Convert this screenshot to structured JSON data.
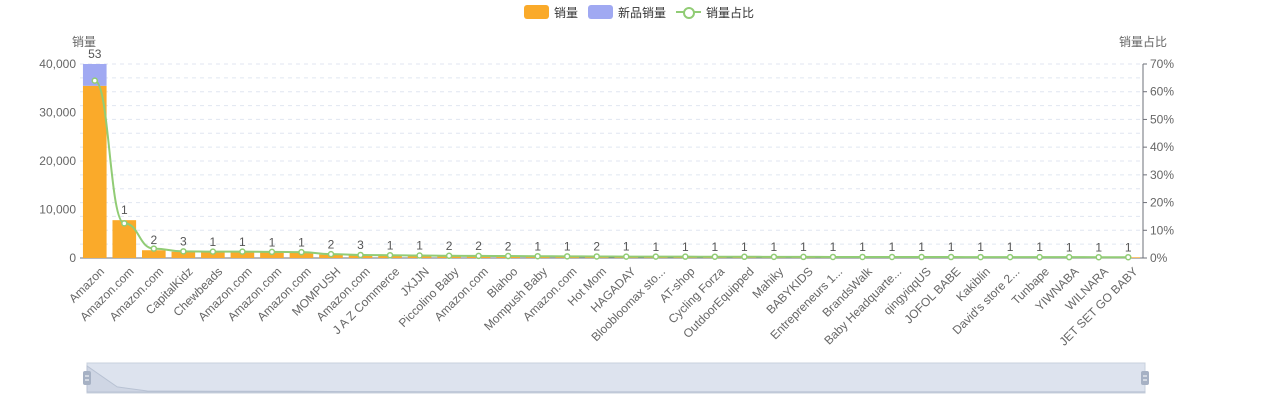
{
  "legend": [
    {
      "label": "销量",
      "color": "#faaa2a",
      "kind": "bar"
    },
    {
      "label": "新品销量",
      "color": "#a0a9f2",
      "kind": "bar"
    },
    {
      "label": "销量占比",
      "color": "#91cc75",
      "kind": "line"
    }
  ],
  "chart_data": {
    "type": "bar",
    "ylabel": "销量",
    "y2label": "销量占比",
    "ylim": [
      0,
      40000
    ],
    "y2lim": [
      0,
      70
    ],
    "y_ticks": [
      "0",
      "10,000",
      "20,000",
      "30,000",
      "40,000"
    ],
    "y2_ticks": [
      "0%",
      "10%",
      "20%",
      "30%",
      "40%",
      "50%",
      "60%",
      "70%"
    ],
    "grid": true,
    "legend_position": "top-center",
    "categories": [
      "Amazon",
      "Amazon.com",
      "Amazon.com",
      "CapitalKidz",
      "Chewbeads",
      "Amazon.com",
      "Amazon.com",
      "Amazon.com",
      "MOMPUSH",
      "Amazon.com",
      "J A Z Commerce",
      "JXJJN",
      "Piccolino Baby",
      "Amazon.com",
      "Blahoo",
      "Mompush Baby",
      "Amazon.com",
      "Hot Mom",
      "HAGADAY",
      "Bloobloomax sto...",
      "AT-shop",
      "Cycling Forza",
      "OutdoorEquipped",
      "Mahiky",
      "BABYKIDS",
      "Entrepreneurs 1...",
      "BrandsWalk",
      "Baby Headquarte...",
      "qingyiqqUS",
      "JOFOL BABE",
      "Kakiblin",
      "David's store 2...",
      "Tunbape",
      "YIWNABA",
      "WILNARA",
      "JET SET GO BABY"
    ],
    "series": [
      {
        "name": "销量",
        "values": [
          35500,
          7800,
          1600,
          1300,
          1200,
          1200,
          1150,
          1100,
          700,
          600,
          520,
          480,
          420,
          380,
          350,
          320,
          300,
          280,
          260,
          250,
          240,
          230,
          220,
          210,
          200,
          190,
          185,
          180,
          175,
          170,
          165,
          160,
          155,
          150,
          145,
          140
        ]
      },
      {
        "name": "新品销量",
        "values": [
          4500,
          0,
          0,
          0,
          0,
          0,
          0,
          0,
          0,
          0,
          0,
          0,
          0,
          0,
          0,
          0,
          0,
          0,
          0,
          0,
          0,
          0,
          0,
          0,
          0,
          0,
          0,
          0,
          0,
          0,
          0,
          0,
          0,
          0,
          0,
          0
        ]
      },
      {
        "name": "销量占比",
        "values": [
          64,
          12.5,
          3.4,
          2.4,
          2.3,
          2.3,
          2.2,
          2.1,
          1.4,
          1.1,
          1.0,
          0.9,
          0.8,
          0.75,
          0.7,
          0.65,
          0.6,
          0.55,
          0.5,
          0.5,
          0.48,
          0.46,
          0.44,
          0.42,
          0.4,
          0.38,
          0.37,
          0.36,
          0.35,
          0.34,
          0.33,
          0.32,
          0.31,
          0.3,
          0.29,
          0.28
        ]
      }
    ],
    "data_labels": [
      "53",
      "1",
      "2",
      "3",
      "1",
      "1",
      "1",
      "1",
      "2",
      "3",
      "1",
      "1",
      "2",
      "2",
      "2",
      "1",
      "1",
      "2",
      "1",
      "1",
      "1",
      "1",
      "1",
      "1",
      "1",
      "1",
      "1",
      "1",
      "1",
      "1",
      "1",
      "1",
      "1",
      "1",
      "1",
      "1"
    ]
  }
}
